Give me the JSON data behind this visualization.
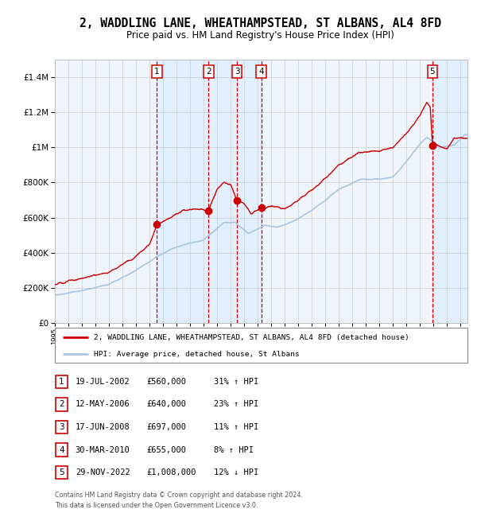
{
  "title": "2, WADDLING LANE, WHEATHAMPSTEAD, ST ALBANS, AL4 8FD",
  "subtitle": "Price paid vs. HM Land Registry's House Price Index (HPI)",
  "legend_line1": "2, WADDLING LANE, WHEATHAMPSTEAD, ST ALBANS, AL4 8FD (detached house)",
  "legend_line2": "HPI: Average price, detached house, St Albans",
  "footer1": "Contains HM Land Registry data © Crown copyright and database right 2024.",
  "footer2": "This data is licensed under the Open Government Licence v3.0.",
  "transactions": [
    {
      "num": 1,
      "date": "19-JUL-2002",
      "price": 560000,
      "pct": "31%",
      "dir": "↑",
      "date_x": 2002.54
    },
    {
      "num": 2,
      "date": "12-MAY-2006",
      "price": 640000,
      "pct": "23%",
      "dir": "↑",
      "date_x": 2006.36
    },
    {
      "num": 3,
      "date": "17-JUN-2008",
      "price": 697000,
      "pct": "11%",
      "dir": "↑",
      "date_x": 2008.46
    },
    {
      "num": 4,
      "date": "30-MAR-2010",
      "price": 655000,
      "pct": "8%",
      "dir": "↑",
      "date_x": 2010.25
    },
    {
      "num": 5,
      "date": "29-NOV-2022",
      "price": 1008000,
      "pct": "12%",
      "dir": "↓",
      "date_x": 2022.91
    }
  ],
  "ylim": [
    0,
    1500000
  ],
  "xlim_start": 1995.0,
  "xlim_end": 2025.5,
  "hpi_color": "#aac4e0",
  "price_color": "#cc0000",
  "dot_color": "#cc0000",
  "dashed_color": "#cc0000",
  "shade_color": "#ddeeff",
  "background_color": "#f0f5fc",
  "grid_color": "#cccccc",
  "title_fontsize": 10.5,
  "subtitle_fontsize": 8.5,
  "hpi_anchors": [
    [
      1995.0,
      160000
    ],
    [
      1997.0,
      185000
    ],
    [
      1999.0,
      220000
    ],
    [
      2001.0,
      300000
    ],
    [
      2002.5,
      375000
    ],
    [
      2004.0,
      435000
    ],
    [
      2006.0,
      475000
    ],
    [
      2007.5,
      570000
    ],
    [
      2008.3,
      575000
    ],
    [
      2009.3,
      510000
    ],
    [
      2010.5,
      555000
    ],
    [
      2011.5,
      545000
    ],
    [
      2013.0,
      590000
    ],
    [
      2014.5,
      670000
    ],
    [
      2016.0,
      760000
    ],
    [
      2017.5,
      815000
    ],
    [
      2019.0,
      820000
    ],
    [
      2020.0,
      830000
    ],
    [
      2021.0,
      920000
    ],
    [
      2022.0,
      1020000
    ],
    [
      2022.5,
      1060000
    ],
    [
      2023.5,
      1000000
    ],
    [
      2024.5,
      1010000
    ],
    [
      2025.3,
      1070000
    ]
  ],
  "prop_anchors": [
    [
      1995.0,
      220000
    ],
    [
      1997.0,
      255000
    ],
    [
      1999.0,
      290000
    ],
    [
      2001.0,
      380000
    ],
    [
      2002.0,
      450000
    ],
    [
      2002.54,
      560000
    ],
    [
      2003.5,
      600000
    ],
    [
      2004.5,
      640000
    ],
    [
      2005.5,
      650000
    ],
    [
      2006.36,
      640000
    ],
    [
      2007.0,
      760000
    ],
    [
      2007.5,
      800000
    ],
    [
      2008.0,
      790000
    ],
    [
      2008.46,
      697000
    ],
    [
      2009.0,
      680000
    ],
    [
      2009.5,
      620000
    ],
    [
      2010.25,
      655000
    ],
    [
      2011.0,
      670000
    ],
    [
      2012.0,
      650000
    ],
    [
      2013.0,
      700000
    ],
    [
      2014.5,
      790000
    ],
    [
      2016.0,
      900000
    ],
    [
      2017.5,
      970000
    ],
    [
      2019.0,
      980000
    ],
    [
      2020.0,
      1000000
    ],
    [
      2021.0,
      1080000
    ],
    [
      2022.0,
      1180000
    ],
    [
      2022.5,
      1260000
    ],
    [
      2022.75,
      1230000
    ],
    [
      2022.91,
      1008000
    ],
    [
      2023.0,
      1030000
    ],
    [
      2023.5,
      1000000
    ],
    [
      2024.0,
      990000
    ],
    [
      2024.5,
      1050000
    ],
    [
      2025.3,
      1050000
    ]
  ]
}
